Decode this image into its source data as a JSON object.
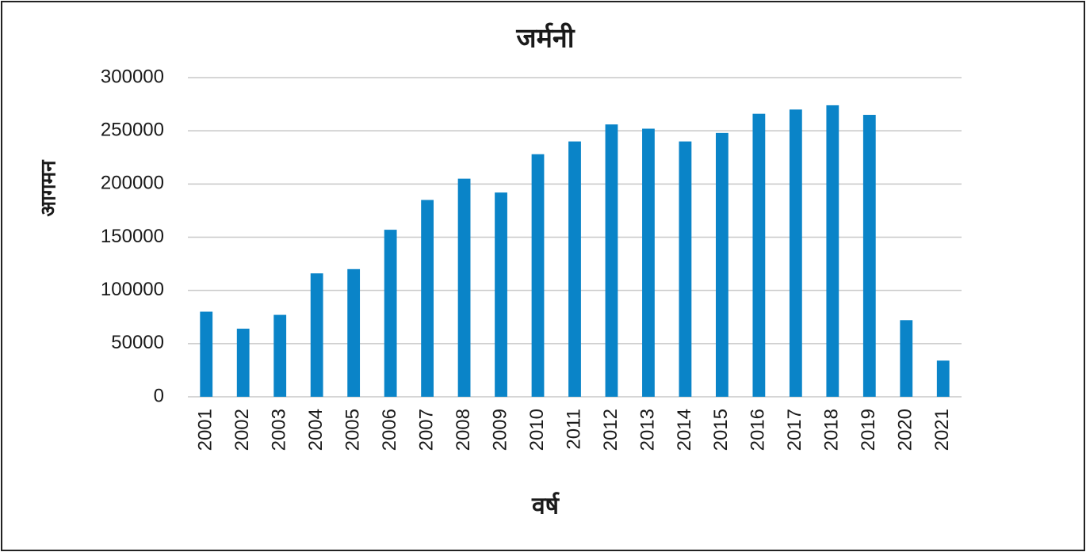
{
  "chart_data": {
    "type": "bar",
    "title": "जर्मनी",
    "x_label": "वर्ष",
    "y_label": "आगमन",
    "categories": [
      "2001",
      "2002",
      "2003",
      "2004",
      "2005",
      "2006",
      "2007",
      "2008",
      "2009",
      "2010",
      "2011",
      "2012",
      "2013",
      "2014",
      "2015",
      "2016",
      "2017",
      "2018",
      "2019",
      "2020",
      "2021"
    ],
    "values": [
      80000,
      64000,
      77000,
      116000,
      120000,
      157000,
      185000,
      205000,
      192000,
      228000,
      240000,
      256000,
      252000,
      240000,
      248000,
      266000,
      270000,
      274000,
      265000,
      72000,
      34000
    ],
    "color": "#0a84c8",
    "ylim": [
      0,
      300000
    ],
    "yticks": [
      0,
      50000,
      100000,
      150000,
      200000,
      250000,
      300000
    ],
    "grid": true
  }
}
